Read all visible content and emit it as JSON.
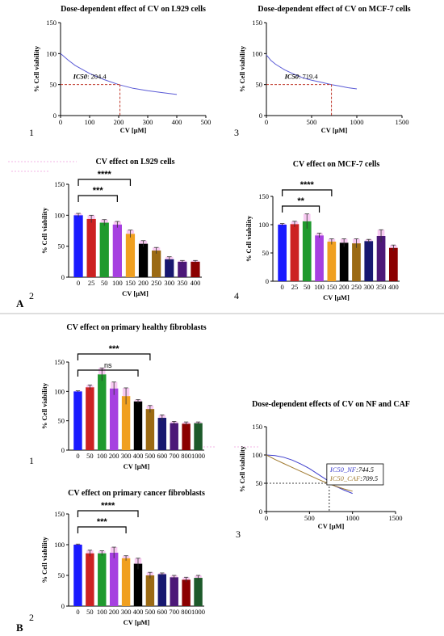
{
  "figure": {
    "section_labels": [
      "A",
      "B"
    ],
    "panel_numbers": [
      "1",
      "3",
      "2",
      "4",
      "1",
      "2",
      "3"
    ]
  },
  "chart_data": [
    {
      "type": "line",
      "title": "Dose-dependent effect of CV on L929 cells",
      "xlabel": "CV [μM]",
      "ylabel": "% Cell viability",
      "xlim": [
        0,
        500
      ],
      "ylim": [
        0,
        150
      ],
      "xticks": [
        "0",
        "100",
        "200",
        "300",
        "400",
        "500"
      ],
      "yticks": [
        "0",
        "50",
        "100",
        "150"
      ],
      "series": [
        {
          "color": "#5b5bd6",
          "x": [
            0,
            25,
            50,
            100,
            150,
            200,
            250,
            300,
            350,
            400
          ],
          "y": [
            100,
            90,
            81,
            68,
            58,
            50,
            44,
            40,
            37,
            34
          ]
        }
      ],
      "ic50": {
        "label": "IC50",
        "value_text": ": 204.4",
        "x": 204.4,
        "y": 50
      }
    },
    {
      "type": "line",
      "title": "Dose-dependent effect of CV on MCF-7 cells",
      "xlabel": "CV [μM]",
      "ylabel": "% Cell viability",
      "xlim": [
        0,
        1500
      ],
      "ylim": [
        0,
        150
      ],
      "xticks": [
        "0",
        "500",
        "1000",
        "1500"
      ],
      "yticks": [
        "0",
        "50",
        "100",
        "150"
      ],
      "series": [
        {
          "color": "#5b5bd6",
          "x": [
            0,
            50,
            100,
            200,
            300,
            400,
            500,
            600,
            719.4,
            800,
            900,
            1000
          ],
          "y": [
            98,
            89,
            83,
            74,
            67,
            61,
            57,
            54,
            50,
            48,
            45,
            43
          ]
        }
      ],
      "ic50": {
        "label": "IC50",
        "value_text": ": 719.4",
        "x": 719.4,
        "y": 50
      }
    },
    {
      "type": "bar",
      "title": "CV effect on L929 cells",
      "xlabel": "CV [μM]",
      "ylabel": "% Cell viability",
      "ylim": [
        0,
        150
      ],
      "yticks": [
        "0",
        "50",
        "100",
        "150"
      ],
      "categories": [
        "0",
        "25",
        "50",
        "100",
        "150",
        "200",
        "250",
        "300",
        "350",
        "400"
      ],
      "values": [
        100,
        94,
        88,
        85,
        70,
        54,
        43,
        29,
        25,
        25
      ],
      "errors": [
        3,
        6,
        5,
        5,
        6,
        5,
        5,
        4,
        2,
        2
      ],
      "colors": [
        "#1a1aff",
        "#cc2222",
        "#1f9a2e",
        "#a640e0",
        "#f0a020",
        "#000000",
        "#9b6a14",
        "#181870",
        "#4c1878",
        "#8b0000"
      ],
      "brackets": [
        {
          "from": 0,
          "to": 4,
          "label": "****"
        },
        {
          "from": 0,
          "to": 3,
          "label": "***"
        }
      ]
    },
    {
      "type": "bar",
      "title": "CV effect on MCF-7 cells",
      "xlabel": "CV [μM]",
      "ylabel": "% Cell viability",
      "ylim": [
        0,
        150
      ],
      "yticks": [
        "0",
        "50",
        "100",
        "150"
      ],
      "categories": [
        "0",
        "25",
        "50",
        "100",
        "150",
        "200",
        "250",
        "300",
        "350",
        "400"
      ],
      "values": [
        100,
        101,
        106,
        81,
        70,
        68,
        67,
        71,
        80,
        59
      ],
      "errors": [
        2,
        5,
        13,
        4,
        5,
        7,
        8,
        3,
        11,
        5
      ],
      "colors": [
        "#1a1aff",
        "#cc2222",
        "#1f9a2e",
        "#a640e0",
        "#f0a020",
        "#000000",
        "#9b6a14",
        "#181870",
        "#4c1878",
        "#8b0000"
      ],
      "brackets": [
        {
          "from": 0,
          "to": 4,
          "label": "****"
        },
        {
          "from": 0,
          "to": 3,
          "label": "**"
        }
      ]
    },
    {
      "type": "bar",
      "title": "CV effect on primary healthy fibroblasts",
      "xlabel": "CV [μM]",
      "ylabel": "% Cell viability",
      "ylim": [
        0,
        150
      ],
      "yticks": [
        "0",
        "50",
        "100",
        "150"
      ],
      "categories": [
        "0",
        "50",
        "100",
        "200",
        "300",
        "400",
        "500",
        "600",
        "700",
        "800",
        "1000"
      ],
      "values": [
        100,
        107,
        129,
        105,
        92,
        83,
        70,
        55,
        46,
        45,
        46
      ],
      "errors": [
        1,
        4,
        11,
        11,
        14,
        3,
        6,
        5,
        3,
        3,
        2
      ],
      "colors": [
        "#1a1aff",
        "#cc2222",
        "#1f9a2e",
        "#a640e0",
        "#f0a020",
        "#000000",
        "#9b6a14",
        "#181870",
        "#4c1878",
        "#8b0000",
        "#1d5a2a"
      ],
      "brackets": [
        {
          "from": 0,
          "to": 6,
          "label": "***"
        },
        {
          "from": 0,
          "to": 5,
          "label": "ns"
        }
      ]
    },
    {
      "type": "bar",
      "title": "CV effect on primary cancer fibroblasts",
      "xlabel": "CV [μM]",
      "ylabel": "% Cell viability",
      "ylim": [
        0,
        150
      ],
      "yticks": [
        "0",
        "50",
        "100",
        "150"
      ],
      "categories": [
        "0",
        "50",
        "100",
        "200",
        "300",
        "400",
        "500",
        "600",
        "700",
        "800",
        "1000"
      ],
      "values": [
        100,
        86,
        86,
        87,
        78,
        69,
        50,
        52,
        47,
        43,
        46
      ],
      "errors": [
        1,
        5,
        4,
        9,
        4,
        9,
        5,
        2,
        3,
        4,
        4
      ],
      "colors": [
        "#1a1aff",
        "#cc2222",
        "#1f9a2e",
        "#a640e0",
        "#f0a020",
        "#000000",
        "#9b6a14",
        "#181870",
        "#4c1878",
        "#8b0000",
        "#1d5a2a"
      ],
      "brackets": [
        {
          "from": 0,
          "to": 5,
          "label": "****"
        },
        {
          "from": 0,
          "to": 4,
          "label": "***"
        }
      ]
    },
    {
      "type": "line",
      "title": "Dose-dependent effects of CV on NF and CAF",
      "xlabel": "CV [μM]",
      "ylabel": "% Cell viability",
      "xlim": [
        0,
        1500
      ],
      "ylim": [
        0,
        150
      ],
      "xticks": [
        "0",
        "500",
        "1000",
        "1500"
      ],
      "yticks": [
        "0",
        "50",
        "100",
        "150"
      ],
      "series": [
        {
          "name": "IC50_NF",
          "color": "#3d3dcc",
          "x": [
            0,
            100,
            200,
            300,
            400,
            500,
            600,
            700,
            744.5,
            800,
            900,
            1000
          ],
          "y": [
            100,
            99,
            96,
            91,
            84,
            76,
            66,
            56,
            50,
            45,
            38,
            32
          ]
        },
        {
          "name": "IC50_CAF",
          "color": "#a07a30",
          "x": [
            0,
            100,
            200,
            300,
            400,
            500,
            600,
            709.5,
            800,
            900,
            1000
          ],
          "y": [
            100,
            92,
            85,
            78,
            71,
            64,
            57,
            50,
            45,
            40,
            36
          ]
        }
      ],
      "ic50_x": 730,
      "legend": [
        {
          "label": "IC50_NF",
          "value_text": ":744.5",
          "color": "#3d3dcc"
        },
        {
          "label": "IC50_CAF",
          "value_text": ":709.5",
          "color": "#a07a30"
        }
      ]
    }
  ]
}
